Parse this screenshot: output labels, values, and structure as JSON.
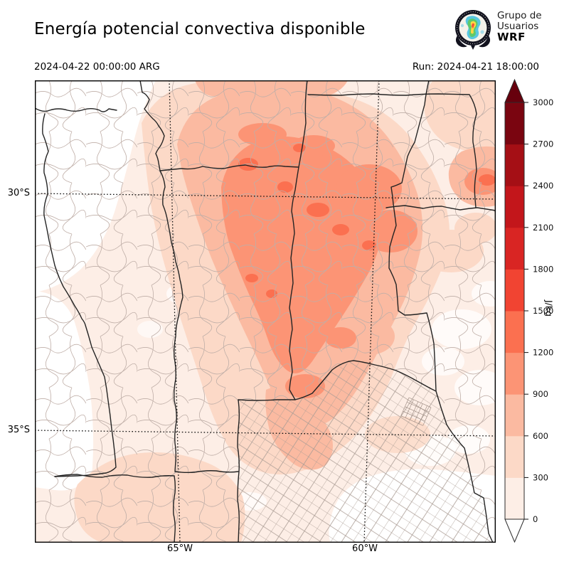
{
  "header": {
    "title": "Energía potencial convectiva disponible"
  },
  "subheader": {
    "valid_time": "2024-04-22 00:00:00 ARG",
    "run": "Run: 2024-04-21 18:00:00"
  },
  "logo": {
    "line1": "Grupo de",
    "line2": "Usuarios",
    "line3": "WRF"
  },
  "map_axes": {
    "lat_ticks": [
      "30°S",
      "35°S"
    ],
    "lon_ticks": [
      "65°W",
      "60°W"
    ]
  },
  "field": {
    "variable": "CAPE (convective available potential energy), shaded",
    "description": "Highest shaded values (~900–1500 J/kg) over north-central Argentina; near zero over the Andes foothills (west) and southern Buenos Aires / Río de la Plata (southeast). Province borders thick dark, department borders thin gray, dotted lat-lon graticule."
  },
  "colorbar": {
    "unit": "J/kg",
    "tick_values": [
      "0",
      "300",
      "600",
      "900",
      "1200",
      "1500",
      "1800",
      "2100",
      "2400",
      "2700",
      "3000"
    ],
    "bin_colors": [
      "#fdeee6",
      "#fcd9c7",
      "#fbbaa1",
      "#fc9475",
      "#fb7050",
      "#f14432",
      "#d92523",
      "#c3161b",
      "#a50f15",
      "#7a0510"
    ],
    "over_color": "#67000d",
    "under_color": "#ffffff",
    "outline_color": "#2b2b2b"
  }
}
